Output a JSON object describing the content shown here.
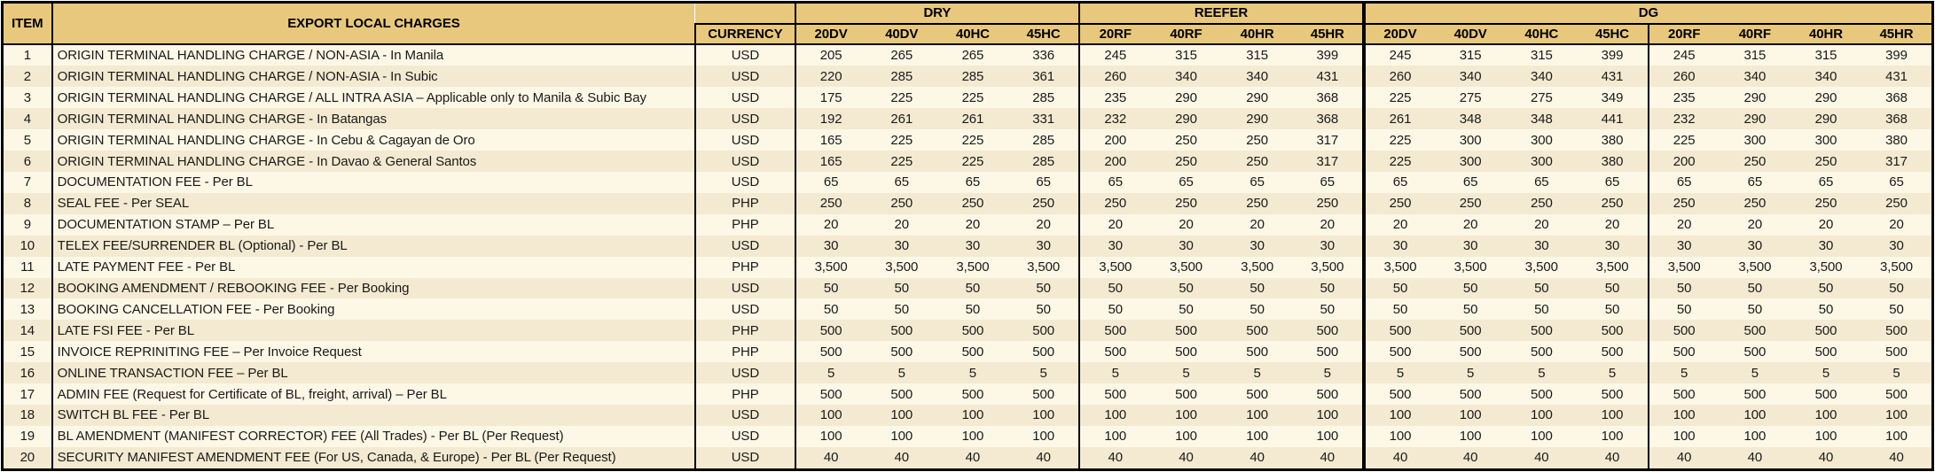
{
  "table": {
    "item_header": "ITEM",
    "title": "EXPORT LOCAL CHARGES",
    "currency_header": "CURRENCY",
    "groups": [
      {
        "label": "DRY",
        "cols": [
          "20DV",
          "40DV",
          "40HC",
          "45HC"
        ]
      },
      {
        "label": "REEFER",
        "cols": [
          "20RF",
          "40RF",
          "40HR",
          "45HR"
        ]
      },
      {
        "label": "DG",
        "cols": [
          "20DV",
          "40DV",
          "40HC",
          "45HC",
          "20RF",
          "40RF",
          "40HR",
          "45HR"
        ]
      }
    ],
    "rows": [
      {
        "item": "1",
        "charge": "ORIGIN TERMINAL HANDLING CHARGE / NON-ASIA - In Manila",
        "currency": "USD",
        "values": [
          "205",
          "265",
          "265",
          "336",
          "245",
          "315",
          "315",
          "399",
          "245",
          "315",
          "315",
          "399",
          "245",
          "315",
          "315",
          "399"
        ]
      },
      {
        "item": "2",
        "charge": "ORIGIN TERMINAL HANDLING CHARGE / NON-ASIA - In Subic",
        "currency": "USD",
        "values": [
          "220",
          "285",
          "285",
          "361",
          "260",
          "340",
          "340",
          "431",
          "260",
          "340",
          "340",
          "431",
          "260",
          "340",
          "340",
          "431"
        ]
      },
      {
        "item": "3",
        "charge": "ORIGIN TERMINAL HANDLING CHARGE / ALL INTRA ASIA – Applicable only to Manila & Subic Bay",
        "currency": "USD",
        "values": [
          "175",
          "225",
          "225",
          "285",
          "235",
          "290",
          "290",
          "368",
          "225",
          "275",
          "275",
          "349",
          "235",
          "290",
          "290",
          "368"
        ]
      },
      {
        "item": "4",
        "charge": "ORIGIN TERMINAL HANDLING CHARGE - In Batangas",
        "currency": "USD",
        "values": [
          "192",
          "261",
          "261",
          "331",
          "232",
          "290",
          "290",
          "368",
          "261",
          "348",
          "348",
          "441",
          "232",
          "290",
          "290",
          "368"
        ]
      },
      {
        "item": "5",
        "charge": "ORIGIN TERMINAL HANDLING CHARGE - In Cebu & Cagayan de Oro",
        "currency": "USD",
        "values": [
          "165",
          "225",
          "225",
          "285",
          "200",
          "250",
          "250",
          "317",
          "225",
          "300",
          "300",
          "380",
          "225",
          "300",
          "300",
          "380"
        ]
      },
      {
        "item": "6",
        "charge": "ORIGIN TERMINAL HANDLING CHARGE - In Davao & General Santos",
        "currency": "USD",
        "values": [
          "165",
          "225",
          "225",
          "285",
          "200",
          "250",
          "250",
          "317",
          "225",
          "300",
          "300",
          "380",
          "200",
          "250",
          "250",
          "317"
        ]
      },
      {
        "item": "7",
        "charge": "DOCUMENTATION FEE - Per BL",
        "currency": "USD",
        "values": [
          "65",
          "65",
          "65",
          "65",
          "65",
          "65",
          "65",
          "65",
          "65",
          "65",
          "65",
          "65",
          "65",
          "65",
          "65",
          "65"
        ]
      },
      {
        "item": "8",
        "charge": "SEAL FEE - Per SEAL",
        "currency": "PHP",
        "values": [
          "250",
          "250",
          "250",
          "250",
          "250",
          "250",
          "250",
          "250",
          "250",
          "250",
          "250",
          "250",
          "250",
          "250",
          "250",
          "250"
        ]
      },
      {
        "item": "9",
        "charge": "DOCUMENTATION STAMP – Per BL",
        "currency": "PHP",
        "values": [
          "20",
          "20",
          "20",
          "20",
          "20",
          "20",
          "20",
          "20",
          "20",
          "20",
          "20",
          "20",
          "20",
          "20",
          "20",
          "20"
        ]
      },
      {
        "item": "10",
        "charge": "TELEX FEE/SURRENDER BL (Optional) - Per BL",
        "currency": "USD",
        "values": [
          "30",
          "30",
          "30",
          "30",
          "30",
          "30",
          "30",
          "30",
          "30",
          "30",
          "30",
          "30",
          "30",
          "30",
          "30",
          "30"
        ]
      },
      {
        "item": "11",
        "charge": "LATE PAYMENT FEE - Per BL",
        "currency": "PHP",
        "values": [
          "3,500",
          "3,500",
          "3,500",
          "3,500",
          "3,500",
          "3,500",
          "3,500",
          "3,500",
          "3,500",
          "3,500",
          "3,500",
          "3,500",
          "3,500",
          "3,500",
          "3,500",
          "3,500"
        ]
      },
      {
        "item": "12",
        "charge": "BOOKING AMENDMENT / REBOOKING FEE - Per Booking",
        "currency": "USD",
        "values": [
          "50",
          "50",
          "50",
          "50",
          "50",
          "50",
          "50",
          "50",
          "50",
          "50",
          "50",
          "50",
          "50",
          "50",
          "50",
          "50"
        ]
      },
      {
        "item": "13",
        "charge": "BOOKING CANCELLATION FEE - Per Booking",
        "currency": "USD",
        "values": [
          "50",
          "50",
          "50",
          "50",
          "50",
          "50",
          "50",
          "50",
          "50",
          "50",
          "50",
          "50",
          "50",
          "50",
          "50",
          "50"
        ]
      },
      {
        "item": "14",
        "charge": "LATE FSI FEE - Per BL",
        "currency": "PHP",
        "values": [
          "500",
          "500",
          "500",
          "500",
          "500",
          "500",
          "500",
          "500",
          "500",
          "500",
          "500",
          "500",
          "500",
          "500",
          "500",
          "500"
        ]
      },
      {
        "item": "15",
        "charge": "INVOICE REPRINITING FEE – Per Invoice Request",
        "currency": "PHP",
        "values": [
          "500",
          "500",
          "500",
          "500",
          "500",
          "500",
          "500",
          "500",
          "500",
          "500",
          "500",
          "500",
          "500",
          "500",
          "500",
          "500"
        ]
      },
      {
        "item": "16",
        "charge": "ONLINE TRANSACTION FEE – Per BL",
        "currency": "USD",
        "values": [
          "5",
          "5",
          "5",
          "5",
          "5",
          "5",
          "5",
          "5",
          "5",
          "5",
          "5",
          "5",
          "5",
          "5",
          "5",
          "5"
        ]
      },
      {
        "item": "17",
        "charge": "ADMIN FEE (Request for Certificate of BL, freight, arrival) – Per BL",
        "currency": "PHP",
        "values": [
          "500",
          "500",
          "500",
          "500",
          "500",
          "500",
          "500",
          "500",
          "500",
          "500",
          "500",
          "500",
          "500",
          "500",
          "500",
          "500"
        ]
      },
      {
        "item": "18",
        "charge": "SWITCH BL FEE - Per BL",
        "currency": "USD",
        "values": [
          "100",
          "100",
          "100",
          "100",
          "100",
          "100",
          "100",
          "100",
          "100",
          "100",
          "100",
          "100",
          "100",
          "100",
          "100",
          "100"
        ]
      },
      {
        "item": "19",
        "charge": "BL AMENDMENT (MANIFEST CORRECTOR) FEE (All Trades) - Per BL (Per Request)",
        "currency": "USD",
        "values": [
          "100",
          "100",
          "100",
          "100",
          "100",
          "100",
          "100",
          "100",
          "100",
          "100",
          "100",
          "100",
          "100",
          "100",
          "100",
          "100"
        ]
      },
      {
        "item": "20",
        "charge": "SECURITY MANIFEST AMENDMENT FEE (For US, Canada, & Europe) - Per BL (Per Request)",
        "currency": "USD",
        "values": [
          "40",
          "40",
          "40",
          "40",
          "40",
          "40",
          "40",
          "40",
          "40",
          "40",
          "40",
          "40",
          "40",
          "40",
          "40",
          "40"
        ]
      }
    ]
  },
  "colors": {
    "header_bg": "#E8C87C",
    "row_light": "#FDF7E6",
    "row_dark": "#F4EAD1",
    "border": "#000000",
    "text": "#1A1A1A"
  }
}
